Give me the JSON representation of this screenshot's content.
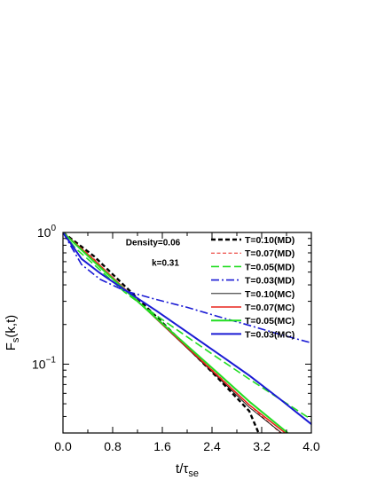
{
  "chart_data": {
    "type": "line",
    "title": "",
    "xlabel": {
      "base": "t/τ",
      "sub": "se"
    },
    "ylabel": {
      "base": "F",
      "sub": "s",
      "rest": "(k,t)"
    },
    "xlim": [
      0.0,
      4.0
    ],
    "ylim": [
      0.03,
      1.0
    ],
    "yscale": "log",
    "grid": false,
    "legend_position": "top-right",
    "x_ticks": [
      {
        "value": 0.0,
        "label": "0.0"
      },
      {
        "value": 0.8,
        "label": "0.8"
      },
      {
        "value": 1.6,
        "label": "1.6"
      },
      {
        "value": 2.4,
        "label": "2.4"
      },
      {
        "value": 3.2,
        "label": "3.2"
      },
      {
        "value": 4.0,
        "label": "4.0"
      }
    ],
    "y_ticks": [
      {
        "value": 1.0,
        "base": "10",
        "exp": "0"
      },
      {
        "value": 0.1,
        "base": "10",
        "exp": "−1"
      }
    ],
    "annotations": [
      {
        "text": "Density=0.06",
        "x": 1.45,
        "y": 0.8
      },
      {
        "text": "k=0.31",
        "x": 1.65,
        "y": 0.56
      }
    ],
    "series": [
      {
        "name": "T=0.10(MD)",
        "color": "#000000",
        "dash": "5,3",
        "width": 2.4,
        "points": [
          [
            0.0,
            1.0
          ],
          [
            0.5,
            0.66
          ],
          [
            1.0,
            0.39
          ],
          [
            1.5,
            0.23
          ],
          [
            2.0,
            0.135
          ],
          [
            2.5,
            0.078
          ],
          [
            3.0,
            0.044
          ],
          [
            3.15,
            0.03
          ]
        ]
      },
      {
        "name": "T=0.07(MD)",
        "color": "#e8231c",
        "dash": "4,2.5",
        "width": 1.0,
        "points": [
          [
            0.0,
            1.0
          ],
          [
            0.5,
            0.63
          ],
          [
            1.0,
            0.365
          ],
          [
            1.5,
            0.222
          ],
          [
            2.0,
            0.135
          ],
          [
            2.5,
            0.082
          ],
          [
            3.0,
            0.049
          ],
          [
            3.5,
            0.03
          ]
        ]
      },
      {
        "name": "T=0.05(MD)",
        "color": "#22dd22",
        "dash": "9,4",
        "width": 1.6,
        "points": [
          [
            0.0,
            1.0
          ],
          [
            0.2,
            0.76
          ],
          [
            0.5,
            0.57
          ],
          [
            1.0,
            0.35
          ],
          [
            1.5,
            0.235
          ],
          [
            2.0,
            0.161
          ],
          [
            2.5,
            0.111
          ],
          [
            3.0,
            0.077
          ],
          [
            3.5,
            0.054
          ],
          [
            4.0,
            0.038
          ]
        ]
      },
      {
        "name": "T=0.03(MD)",
        "color": "#1a1ad4",
        "dash": "9,3,2,3",
        "width": 1.6,
        "points": [
          [
            0.0,
            1.0
          ],
          [
            0.3,
            0.57
          ],
          [
            0.6,
            0.44
          ],
          [
            1.0,
            0.36
          ],
          [
            1.5,
            0.31
          ],
          [
            2.0,
            0.27
          ],
          [
            2.5,
            0.23
          ],
          [
            3.0,
            0.197
          ],
          [
            3.5,
            0.168
          ],
          [
            4.0,
            0.145
          ]
        ]
      },
      {
        "name": "T=0.10(MC)",
        "color": "#000000",
        "dash": "",
        "width": 0.9,
        "points": [
          [
            0.0,
            1.0
          ],
          [
            0.5,
            0.62
          ],
          [
            1.0,
            0.37
          ],
          [
            1.5,
            0.22
          ],
          [
            2.0,
            0.132
          ],
          [
            2.5,
            0.079
          ],
          [
            3.0,
            0.047
          ],
          [
            3.52,
            0.03
          ]
        ]
      },
      {
        "name": "T=0.07(MC)",
        "color": "#e8231c",
        "dash": "",
        "width": 1.6,
        "points": [
          [
            0.0,
            1.0
          ],
          [
            0.5,
            0.62
          ],
          [
            1.0,
            0.37
          ],
          [
            1.5,
            0.222
          ],
          [
            2.0,
            0.134
          ],
          [
            2.5,
            0.081
          ],
          [
            3.0,
            0.049
          ],
          [
            3.58,
            0.03
          ]
        ]
      },
      {
        "name": "T=0.05(MC)",
        "color": "#22dd22",
        "dash": "",
        "width": 2.0,
        "points": [
          [
            0.0,
            1.0
          ],
          [
            0.5,
            0.6
          ],
          [
            1.0,
            0.365
          ],
          [
            1.5,
            0.224
          ],
          [
            2.0,
            0.138
          ],
          [
            2.5,
            0.085
          ],
          [
            3.0,
            0.052
          ],
          [
            3.62,
            0.03
          ]
        ]
      },
      {
        "name": "T=0.03(MC)",
        "color": "#1a1ad4",
        "dash": "",
        "width": 2.0,
        "points": [
          [
            0.0,
            1.0
          ],
          [
            0.3,
            0.63
          ],
          [
            0.6,
            0.49
          ],
          [
            1.0,
            0.365
          ],
          [
            1.5,
            0.255
          ],
          [
            2.0,
            0.175
          ],
          [
            2.5,
            0.12
          ],
          [
            3.0,
            0.082
          ],
          [
            3.5,
            0.054
          ],
          [
            4.0,
            0.035
          ]
        ]
      }
    ]
  }
}
